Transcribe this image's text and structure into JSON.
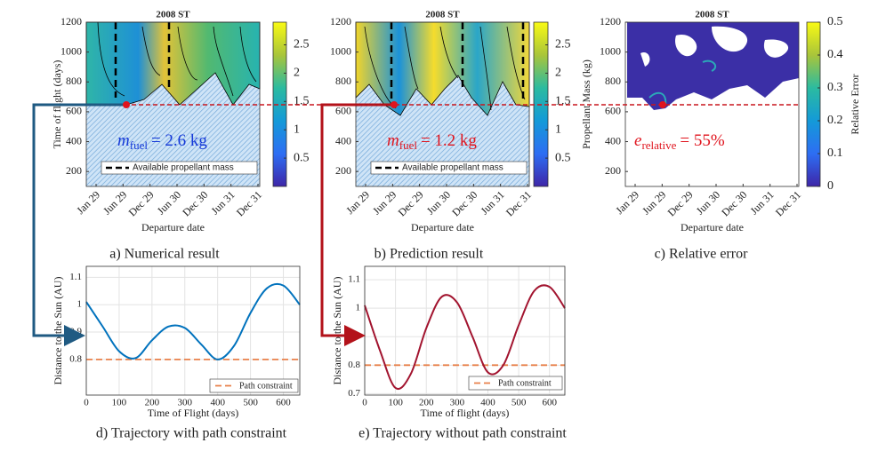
{
  "chart_data": [
    {
      "type": "contour",
      "title": "2008 ST",
      "caption": "a) Numerical result",
      "x_label": "Departure date",
      "y_label": "Time of flight (days)",
      "categories": [
        "Jan 29",
        "Jun 29",
        "Dec 29",
        "Jun 30",
        "Dec 30",
        "Jun 31",
        "Dec 31"
      ],
      "ylim": [
        100,
        1200
      ],
      "yticks": [
        200,
        400,
        600,
        800,
        1000,
        1200
      ],
      "clim": [
        0,
        2.9
      ],
      "cticks": [
        0.5,
        1,
        1.5,
        2,
        2.5
      ],
      "legend": "Available propellant mass",
      "annotation": {
        "symbol": "m",
        "subscript": "fuel",
        "text": "= 2.6 kg",
        "color": "#1438d8"
      }
    },
    {
      "type": "contour",
      "title": "2008 ST",
      "caption": "b) Prediction result",
      "x_label": "Departure date",
      "colorbar_label": "Propellant Mass (kg)",
      "categories": [
        "Jan 29",
        "Jun 29",
        "Dec 29",
        "Jun 30",
        "Dec 30",
        "Jun 31",
        "Dec 31"
      ],
      "ylim": [
        100,
        1200
      ],
      "yticks": [
        200,
        400,
        600,
        800,
        1000,
        1200
      ],
      "clim": [
        0,
        2.9
      ],
      "cticks": [
        0.5,
        1,
        1.5,
        2,
        2.5
      ],
      "legend": "Available propellant mass",
      "annotation": {
        "symbol": "m",
        "subscript": "fuel",
        "text": "= 1.2 kg",
        "color": "#e0141e"
      }
    },
    {
      "type": "contour",
      "title": "2008 ST",
      "caption": "c) Relative error",
      "x_label": "Departure date",
      "colorbar_label": "Relative Error",
      "categories": [
        "Jan 29",
        "Jun 29",
        "Dec 29",
        "Jun 30",
        "Dec 30",
        "Jun 31",
        "Dec 31"
      ],
      "ylim": [
        100,
        1200
      ],
      "yticks": [
        200,
        400,
        600,
        800,
        1000,
        1200
      ],
      "clim": [
        0,
        0.5
      ],
      "cticks": [
        0,
        0.1,
        0.2,
        0.3,
        0.4,
        0.5
      ],
      "annotation": {
        "symbol": "e",
        "subscript": "relative",
        "text": "= 55%",
        "color": "#e0141e"
      }
    },
    {
      "type": "line",
      "caption": "d) Trajectory with path constraint",
      "x_label": "Time of Flight (days)",
      "y_label": "Distance to the Sun (AU)",
      "x": [
        0,
        50,
        100,
        150,
        200,
        250,
        300,
        350,
        400,
        450,
        500,
        550,
        600,
        650
      ],
      "series": [
        {
          "color": "#0072bd",
          "values": [
            1.01,
            0.92,
            0.83,
            0.805,
            0.87,
            0.92,
            0.915,
            0.855,
            0.8,
            0.85,
            0.97,
            1.06,
            1.07,
            1.0
          ]
        }
      ],
      "constraint": {
        "name": "Path constraint",
        "value": 0.8,
        "color": "#e8804a"
      },
      "xlim": [
        0,
        650
      ],
      "xticks": [
        0,
        100,
        200,
        300,
        400,
        500,
        600
      ],
      "ylim": [
        0.67,
        1.14
      ],
      "yticks": [
        0.8,
        0.9,
        1,
        1.1
      ]
    },
    {
      "type": "line",
      "caption": "e) Trajectory without path constraint",
      "x_label": "Time of flight (days)",
      "y_label": "Distance to the Sun (AU)",
      "x": [
        0,
        50,
        100,
        150,
        200,
        250,
        300,
        350,
        400,
        450,
        500,
        550,
        600,
        650
      ],
      "series": [
        {
          "color": "#a2142f",
          "values": [
            1.01,
            0.85,
            0.72,
            0.77,
            0.93,
            1.04,
            1.02,
            0.9,
            0.775,
            0.8,
            0.94,
            1.06,
            1.075,
            1.0
          ]
        }
      ],
      "constraint": {
        "name": "Path constraint",
        "value": 0.8,
        "color": "#e8804a"
      },
      "xlim": [
        0,
        650
      ],
      "xticks": [
        0,
        100,
        200,
        300,
        400,
        500,
        600
      ],
      "ylim": [
        0.695,
        1.147
      ],
      "yticks": [
        0.7,
        0.8,
        0.9,
        1,
        1.1
      ]
    }
  ]
}
